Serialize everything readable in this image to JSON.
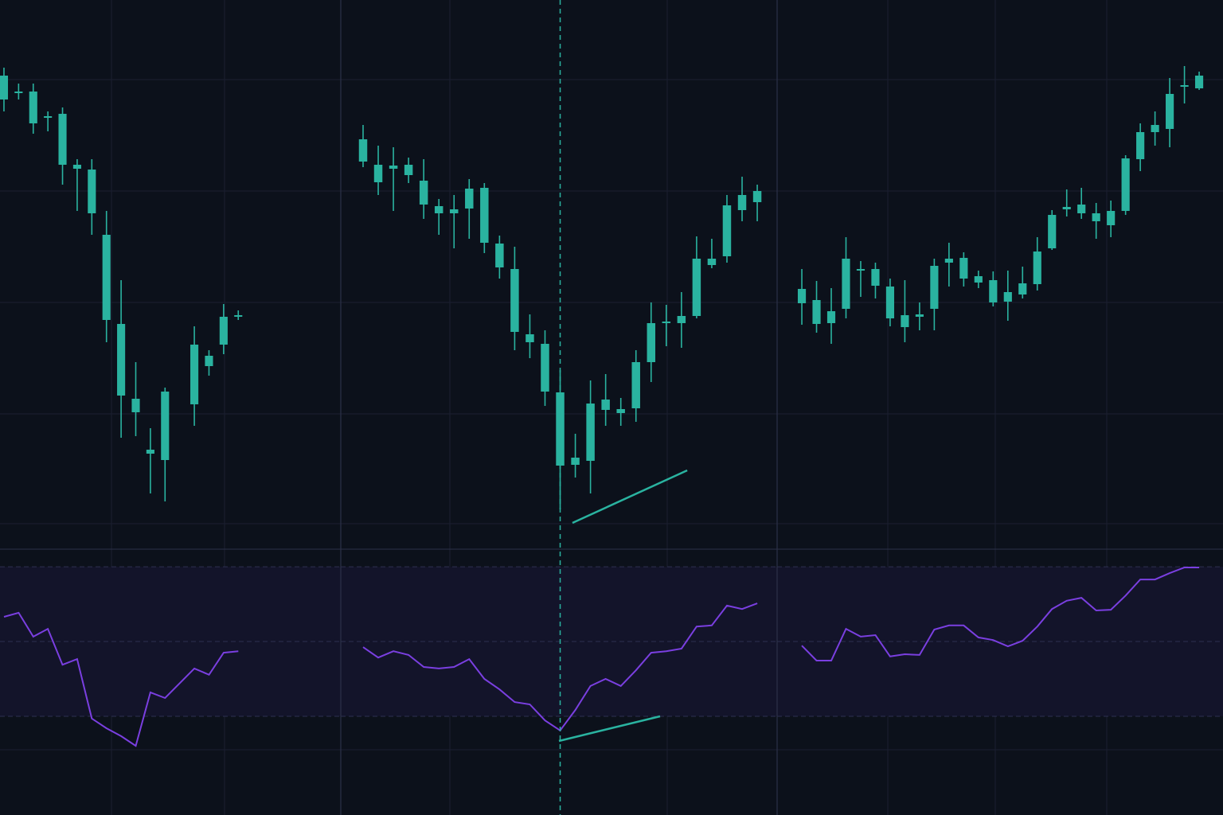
{
  "chart_data": [
    {
      "type": "candlestick",
      "color": "#2ab3a0",
      "xlim": [
        -0.27,
        23.0
      ],
      "ylim": [
        0,
        690
      ],
      "x": [
        0,
        1,
        2,
        3,
        4,
        5,
        6,
        7,
        8,
        9,
        10,
        11,
        13,
        14,
        15,
        16
      ],
      "open": [
        565,
        575,
        575,
        544,
        547,
        483,
        477,
        395,
        283,
        189,
        125,
        112,
        182,
        230,
        257,
        293
      ],
      "high": [
        605,
        585,
        585,
        550,
        555,
        490,
        490,
        425,
        338,
        235,
        152,
        203,
        280,
        250,
        308,
        300
      ],
      "low": [
        550,
        565,
        522,
        525,
        458,
        425,
        395,
        260,
        140,
        142,
        70,
        60,
        155,
        218,
        245,
        288
      ],
      "close": [
        595,
        573,
        535,
        542,
        483,
        478,
        422,
        288,
        193,
        172,
        120,
        198,
        257,
        243,
        292,
        294
      ],
      "oscillator": {
        "color": "#7a3fe0",
        "y2lim": [
          3.6,
          74.7
        ],
        "levels": [
          30,
          50,
          70
        ],
        "values": [
          56.6,
          57.7,
          51.3,
          53.4,
          43.8,
          45.3,
          29.4,
          26.8,
          24.7,
          22.1,
          36.4,
          34.9,
          42.8,
          41.1,
          47,
          47.4
        ]
      }
    },
    {
      "type": "candlestick",
      "color": "#2ab3a0",
      "xlim": [
        -1.47,
        27.31
      ],
      "ylim": [
        0,
        690
      ],
      "x": [
        0,
        1,
        2,
        3,
        4,
        5,
        6,
        7,
        8,
        9,
        10,
        11,
        12,
        13,
        14,
        15,
        16,
        17,
        18,
        19,
        20,
        21,
        22,
        23,
        24,
        25,
        26
      ],
      "open": [
        515,
        483,
        482,
        483,
        463,
        431,
        427,
        428,
        454,
        384,
        352,
        270,
        258,
        197,
        106,
        111,
        175,
        171,
        177,
        235,
        285,
        284,
        293,
        357,
        368,
        426,
        436
      ],
      "high": [
        533,
        507,
        505,
        492,
        490,
        440,
        445,
        465,
        460,
        394,
        380,
        295,
        275,
        225,
        145,
        212,
        220,
        190,
        250,
        310,
        307,
        323,
        393,
        390,
        445,
        468,
        458
      ],
      "low": [
        480,
        445,
        425,
        460,
        415,
        395,
        378,
        390,
        372,
        340,
        250,
        240,
        180,
        50,
        90,
        70,
        155,
        155,
        160,
        210,
        255,
        253,
        290,
        353,
        360,
        412,
        412
      ],
      "close": [
        487,
        461,
        478,
        470,
        433,
        422,
        422,
        453,
        385,
        354,
        273,
        260,
        198,
        105,
        115,
        183,
        188,
        176,
        235,
        284,
        286,
        293,
        365,
        365,
        432,
        445,
        450
      ],
      "vline_x": 13,
      "trendline": {
        "x": [
          13.81,
          21.38
        ],
        "values": [
          33,
          99
        ]
      },
      "oscillator": {
        "color": "#7a3fe0",
        "y2lim": [
          3.6,
          74.7
        ],
        "levels": [
          30,
          50,
          70
        ],
        "values": [
          48.5,
          45.7,
          47.4,
          46.4,
          43.2,
          42.8,
          43.2,
          45.3,
          40,
          37.2,
          33.8,
          33.2,
          28.9,
          26.2,
          31.7,
          38.1,
          40,
          38.1,
          42.3,
          47,
          47.4,
          48.1,
          54,
          54.3,
          59.6,
          58.7,
          60.2
        ],
        "trendline": {
          "x": [
            12.92,
            19.59
          ],
          "values": [
            23.4,
            30
          ]
        }
      }
    },
    {
      "type": "candlestick",
      "color": "#2ab3a0",
      "xlim": [
        -1.68,
        28.62
      ],
      "ylim": [
        0,
        690
      ],
      "x": [
        0,
        1,
        2,
        3,
        4,
        5,
        6,
        7,
        8,
        9,
        10,
        11,
        12,
        13,
        14,
        15,
        16,
        17,
        18,
        19,
        20,
        21,
        22,
        23,
        24,
        25,
        26,
        27
      ],
      "open": [
        309,
        313,
        299,
        302,
        350,
        352,
        330,
        294,
        295,
        302,
        360,
        366,
        343,
        338,
        311,
        320,
        333,
        378,
        427,
        433,
        422,
        407,
        425,
        490,
        524,
        528,
        582,
        579
      ],
      "high": [
        352,
        337,
        328,
        392,
        362,
        360,
        340,
        338,
        310,
        365,
        385,
        373,
        350,
        349,
        350,
        355,
        392,
        426,
        452,
        454,
        435,
        438,
        495,
        535,
        550,
        592,
        607,
        600
      ],
      "low": [
        282,
        272,
        258,
        290,
        317,
        315,
        280,
        260,
        275,
        275,
        330,
        330,
        328,
        305,
        287,
        315,
        325,
        376,
        418,
        415,
        390,
        392,
        420,
        475,
        507,
        505,
        560,
        577
      ],
      "close": [
        327,
        283,
        284,
        365,
        352,
        331,
        290,
        279,
        292,
        356,
        365,
        340,
        335,
        310,
        323,
        334,
        374,
        420,
        430,
        422,
        412,
        425,
        491,
        524,
        533,
        572,
        583,
        595
      ],
      "oscillator": {
        "color": "#7a3fe0",
        "y2lim": [
          3.6,
          74.7
        ],
        "levels": [
          30,
          50,
          70
        ],
        "values": [
          48.9,
          44.9,
          44.9,
          53.4,
          51.3,
          51.7,
          46,
          46.6,
          46.4,
          53.2,
          54.3,
          54.3,
          51.1,
          50.4,
          48.7,
          50.2,
          54,
          58.7,
          60.9,
          61.7,
          58.3,
          58.5,
          62.3,
          66.6,
          66.6,
          68.3,
          69.8,
          69.8
        ]
      }
    }
  ]
}
